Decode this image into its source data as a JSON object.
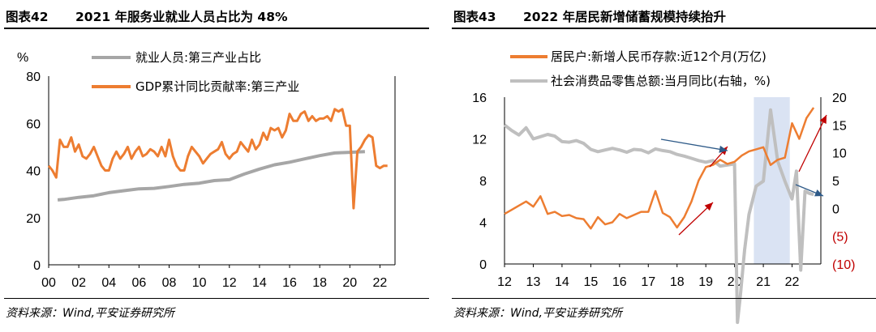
{
  "charts": {
    "left": {
      "title_num": "图表42",
      "title": "2021 年服务业就业人员占比为 48%",
      "source": "资料来源：Wind,平安证券研究所",
      "unit": "%",
      "colors": {
        "employment": "#a6a6a6",
        "gdp": "#ed7d31"
      }
    },
    "right": {
      "title_num": "图表43",
      "title": "2022 年居民新增储蓄规模持续抬升",
      "source": "资料来源：Wind,平安证券研究所",
      "colors": {
        "deposits": "#ed7d31",
        "retail": "#bfbfbf",
        "shade": "#dae3f3",
        "arrow_red": "#c00000",
        "arrow_blue": "#2e5a88"
      }
    }
  },
  "chart_data": [
    {
      "type": "line",
      "ylabel": "%",
      "ylim": [
        0,
        80
      ],
      "yticks": [
        "0",
        "20",
        "40",
        "60",
        "80"
      ],
      "xlim": [
        2000,
        2023
      ],
      "xticks": [
        "00",
        "02",
        "04",
        "06",
        "08",
        "10",
        "12",
        "14",
        "16",
        "18",
        "20",
        "22"
      ],
      "legend": "top-left",
      "series": [
        {
          "name": "就业人员:第三产业占比",
          "x": [
            2000.6,
            2001,
            2002,
            2003,
            2004,
            2005,
            2006,
            2007,
            2008,
            2009,
            2010,
            2011,
            2012,
            2013,
            2014,
            2015,
            2016,
            2017,
            2018,
            2019,
            2020,
            2021
          ],
          "values": [
            27.5,
            27.7,
            28.6,
            29.3,
            30.6,
            31.4,
            32.2,
            32.4,
            33.2,
            34.1,
            34.6,
            35.7,
            36.1,
            38.5,
            40.6,
            42.4,
            43.5,
            44.9,
            46.3,
            47.4,
            47.7,
            48.0
          ]
        },
        {
          "name": "GDP累计同比贡献率:第三产业",
          "x": [
            2000.0,
            2000.25,
            2000.5,
            2000.75,
            2001.0,
            2001.25,
            2001.5,
            2001.75,
            2002.0,
            2002.25,
            2002.5,
            2002.75,
            2003.0,
            2003.25,
            2003.5,
            2003.75,
            2004.0,
            2004.25,
            2004.5,
            2004.75,
            2005.0,
            2005.25,
            2005.5,
            2005.75,
            2006.0,
            2006.25,
            2006.5,
            2006.75,
            2007.0,
            2007.25,
            2007.5,
            2007.75,
            2008.0,
            2008.25,
            2008.5,
            2008.75,
            2009.0,
            2009.25,
            2009.5,
            2009.75,
            2010.0,
            2010.25,
            2010.5,
            2010.75,
            2011.0,
            2011.25,
            2011.5,
            2011.75,
            2012.0,
            2012.25,
            2012.5,
            2012.75,
            2013.0,
            2013.25,
            2013.5,
            2013.75,
            2014.0,
            2014.25,
            2014.5,
            2014.75,
            2015.0,
            2015.25,
            2015.5,
            2015.75,
            2016.0,
            2016.25,
            2016.5,
            2016.75,
            2017.0,
            2017.25,
            2017.5,
            2017.75,
            2018.0,
            2018.25,
            2018.5,
            2018.75,
            2019.0,
            2019.25,
            2019.5,
            2019.75,
            2020.0,
            2020.25,
            2020.5,
            2020.75,
            2021.0,
            2021.25,
            2021.5,
            2021.75,
            2022.0,
            2022.25,
            2022.5
          ],
          "values": [
            42,
            40,
            37,
            53,
            50,
            50,
            54,
            48,
            51,
            46,
            45,
            47,
            50,
            46,
            42,
            40,
            40,
            45,
            48,
            45,
            47,
            50,
            45,
            48,
            50,
            46,
            47,
            49,
            48,
            46,
            50,
            46,
            53,
            46,
            42,
            40,
            40,
            46,
            50,
            48,
            46,
            43,
            45,
            47,
            48,
            49,
            52,
            47,
            45,
            47,
            48,
            52,
            50,
            48,
            53,
            49,
            51,
            56,
            53,
            58,
            57,
            58,
            54,
            57,
            64,
            61,
            61,
            64,
            65,
            61,
            63,
            61,
            62,
            62,
            63,
            61,
            66,
            65,
            66,
            59,
            59,
            24,
            48,
            50,
            53,
            55,
            54,
            42,
            41,
            42,
            42
          ]
        }
      ]
    },
    {
      "type": "line",
      "ylim": [
        0,
        16
      ],
      "yticks": [
        "0",
        "4",
        "8",
        "12",
        "16"
      ],
      "y2lim": [
        -10,
        20
      ],
      "y2ticks": [
        "(10)",
        "(5)",
        "0",
        "5",
        "10",
        "15",
        "20"
      ],
      "xlim": [
        2012,
        2023
      ],
      "xticks": [
        "12",
        "13",
        "14",
        "15",
        "16",
        "17",
        "18",
        "19",
        "20",
        "21",
        "22"
      ],
      "legend": "top-center",
      "shaded_range": [
        2020.67,
        2021.92
      ],
      "series": [
        {
          "name": "居民户:新增人民币存款:近12个月(万亿)",
          "axis": "left",
          "x": [
            2012.0,
            2012.25,
            2012.5,
            2012.75,
            2013.0,
            2013.25,
            2013.5,
            2013.75,
            2014.0,
            2014.25,
            2014.5,
            2014.75,
            2015.0,
            2015.25,
            2015.5,
            2015.75,
            2016.0,
            2016.25,
            2016.5,
            2016.75,
            2017.0,
            2017.25,
            2017.5,
            2017.75,
            2018.0,
            2018.25,
            2018.5,
            2018.75,
            2019.0,
            2019.25,
            2019.5,
            2019.75,
            2020.0,
            2020.25,
            2020.5,
            2020.75,
            2021.0,
            2021.25,
            2021.5,
            2021.75,
            2022.0,
            2022.25,
            2022.5,
            2022.75
          ],
          "values": [
            4.8,
            5.2,
            5.6,
            6.0,
            5.5,
            6.5,
            4.8,
            5.0,
            4.6,
            4.7,
            4.4,
            4.3,
            3.4,
            4.5,
            3.8,
            4.0,
            4.8,
            4.4,
            4.7,
            5.0,
            5.0,
            7.0,
            4.9,
            4.5,
            3.5,
            4.5,
            6.0,
            8.0,
            9.3,
            9.5,
            10.0,
            9.6,
            9.8,
            10.4,
            10.8,
            11.0,
            11.2,
            9.5,
            10.0,
            10.2,
            13.5,
            12.0,
            14.0,
            15.0
          ]
        },
        {
          "name": "社会消费品零售总额:当月同比(右轴，%)",
          "axis": "right",
          "x": [
            2012.0,
            2012.25,
            2012.5,
            2012.75,
            2013.0,
            2013.25,
            2013.5,
            2013.75,
            2014.0,
            2014.25,
            2014.5,
            2014.75,
            2015.0,
            2015.25,
            2015.5,
            2015.75,
            2016.0,
            2016.25,
            2016.5,
            2016.75,
            2017.0,
            2017.25,
            2017.5,
            2017.75,
            2018.0,
            2018.25,
            2018.5,
            2018.75,
            2019.0,
            2019.25,
            2019.5,
            2019.75,
            2020.0,
            2020.1,
            2020.2,
            2020.35,
            2020.5,
            2020.75,
            2021.0,
            2021.25,
            2021.5,
            2021.75,
            2022.0,
            2022.15,
            2022.3,
            2022.45,
            2022.6,
            2022.75
          ],
          "values": [
            15,
            14,
            13.2,
            14.5,
            12.5,
            12.9,
            13.3,
            13.0,
            12.0,
            11.9,
            12.2,
            11.7,
            10.6,
            10.2,
            10.5,
            10.8,
            10.5,
            10.1,
            10.6,
            10.5,
            10.0,
            10.7,
            10.4,
            10.2,
            9.7,
            9.4,
            9.0,
            8.6,
            8.3,
            8.6,
            7.6,
            7.8,
            8.0,
            -20.5,
            -15.8,
            -7.5,
            -1.1,
            4.0,
            4.9,
            17.7,
            8.5,
            4.9,
            1.7,
            6.7,
            -11.1,
            3.1,
            2.7,
            2.5
          ]
        }
      ]
    }
  ]
}
